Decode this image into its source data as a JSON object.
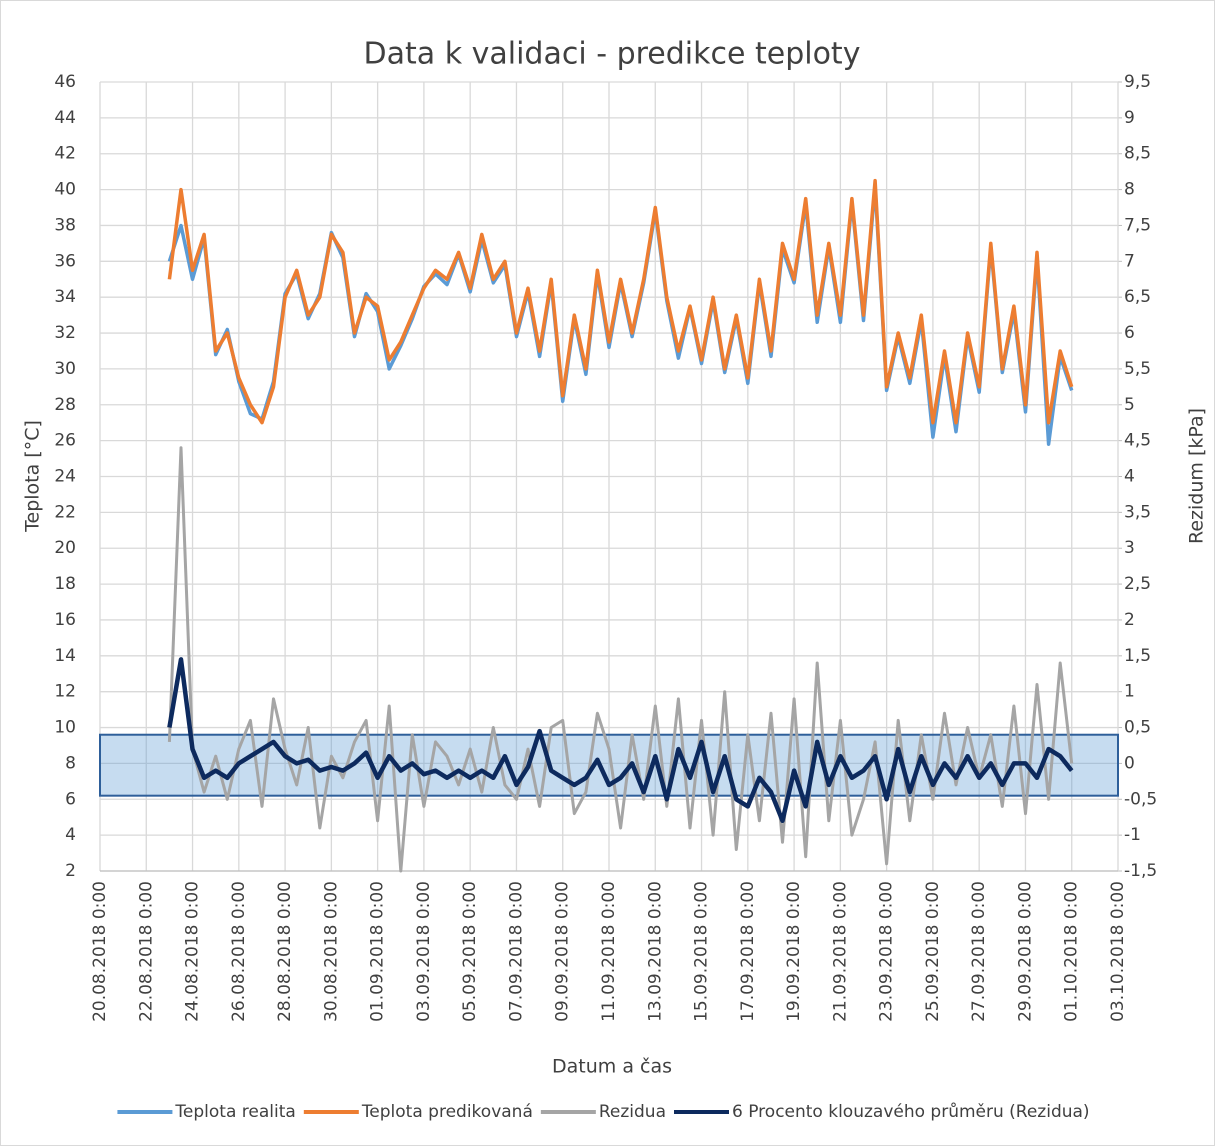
{
  "chart_data": {
    "type": "line",
    "title": "Data k validaci - predikce teploty",
    "x_label": "Datum a čas",
    "y_label": "Teplota [°C]",
    "y2_label": "Rezidum [kPa]",
    "grid": true,
    "legend": "bottom",
    "xlim": [
      "2018-08-20T00:00",
      "2018-10-03T00:00"
    ],
    "xticks": [
      {
        "value": "2018-08-20T00:00",
        "label": "20.08.2018 0:00"
      },
      {
        "value": "2018-08-22T00:00",
        "label": "22.08.2018 0:00"
      },
      {
        "value": "2018-08-24T00:00",
        "label": "24.08.2018 0:00"
      },
      {
        "value": "2018-08-26T00:00",
        "label": "26.08.2018 0:00"
      },
      {
        "value": "2018-08-28T00:00",
        "label": "28.08.2018 0:00"
      },
      {
        "value": "2018-08-30T00:00",
        "label": "30.08.2018 0:00"
      },
      {
        "value": "2018-09-01T00:00",
        "label": "01.09.2018 0:00"
      },
      {
        "value": "2018-09-03T00:00",
        "label": "03.09.2018 0:00"
      },
      {
        "value": "2018-09-05T00:00",
        "label": "05.09.2018 0:00"
      },
      {
        "value": "2018-09-07T00:00",
        "label": "07.09.2018 0:00"
      },
      {
        "value": "2018-09-09T00:00",
        "label": "09.09.2018 0:00"
      },
      {
        "value": "2018-09-11T00:00",
        "label": "11.09.2018 0:00"
      },
      {
        "value": "2018-09-13T00:00",
        "label": "13.09.2018 0:00"
      },
      {
        "value": "2018-09-15T00:00",
        "label": "15.09.2018 0:00"
      },
      {
        "value": "2018-09-17T00:00",
        "label": "17.09.2018 0:00"
      },
      {
        "value": "2018-09-19T00:00",
        "label": "19.09.2018 0:00"
      },
      {
        "value": "2018-09-21T00:00",
        "label": "21.09.2018 0:00"
      },
      {
        "value": "2018-09-23T00:00",
        "label": "23.09.2018 0:00"
      },
      {
        "value": "2018-09-25T00:00",
        "label": "25.09.2018 0:00"
      },
      {
        "value": "2018-09-27T00:00",
        "label": "27.09.2018 0:00"
      },
      {
        "value": "2018-09-29T00:00",
        "label": "29.09.2018 0:00"
      },
      {
        "value": "2018-10-01T00:00",
        "label": "01.10.2018 0:00"
      },
      {
        "value": "2018-10-03T00:00",
        "label": "03.10.2018 0:00"
      }
    ],
    "ylim": [
      2,
      46
    ],
    "yticks": [
      2,
      4,
      6,
      8,
      10,
      12,
      14,
      16,
      18,
      20,
      22,
      24,
      26,
      28,
      30,
      32,
      34,
      36,
      38,
      40,
      42,
      44,
      46
    ],
    "y2lim": [
      -1.5,
      9.5
    ],
    "y2ticks": [
      {
        "value": -1.5,
        "label": "-1,5"
      },
      -1,
      {
        "value": -0.5,
        "label": "-0,5"
      },
      0,
      {
        "value": 0.5,
        "label": "0,5"
      },
      1,
      {
        "value": 1.5,
        "label": "1,5"
      },
      2,
      {
        "value": 2.5,
        "label": "2,5"
      },
      3,
      {
        "value": 3.5,
        "label": "3,5"
      },
      4,
      {
        "value": 4.5,
        "label": "4,5"
      },
      5,
      {
        "value": 5.5,
        "label": "5,5"
      },
      6,
      {
        "value": 6.5,
        "label": "6,5"
      },
      7,
      {
        "value": 7.5,
        "label": "7,5"
      },
      8,
      {
        "value": 8.5,
        "label": "8,5"
      },
      9,
      {
        "value": 9.5,
        "label": "9,5"
      }
    ],
    "highlight_y2": [
      -0.45,
      0.4
    ],
    "highlight_color": "#5b9bd5",
    "x": [
      "2018-08-23T00:00",
      "2018-08-23T12:00",
      "2018-08-24T00:00",
      "2018-08-24T12:00",
      "2018-08-25T00:00",
      "2018-08-25T12:00",
      "2018-08-26T00:00",
      "2018-08-26T12:00",
      "2018-08-27T00:00",
      "2018-08-27T12:00",
      "2018-08-28T00:00",
      "2018-08-28T12:00",
      "2018-08-29T00:00",
      "2018-08-29T12:00",
      "2018-08-30T00:00",
      "2018-08-30T12:00",
      "2018-08-31T00:00",
      "2018-08-31T12:00",
      "2018-09-01T00:00",
      "2018-09-01T12:00",
      "2018-09-02T00:00",
      "2018-09-02T12:00",
      "2018-09-03T00:00",
      "2018-09-03T12:00",
      "2018-09-04T00:00",
      "2018-09-04T12:00",
      "2018-09-05T00:00",
      "2018-09-05T12:00",
      "2018-09-06T00:00",
      "2018-09-06T12:00",
      "2018-09-07T00:00",
      "2018-09-07T12:00",
      "2018-09-08T00:00",
      "2018-09-08T12:00",
      "2018-09-09T00:00",
      "2018-09-09T12:00",
      "2018-09-10T00:00",
      "2018-09-10T12:00",
      "2018-09-11T00:00",
      "2018-09-11T12:00",
      "2018-09-12T00:00",
      "2018-09-12T12:00",
      "2018-09-13T00:00",
      "2018-09-13T12:00",
      "2018-09-14T00:00",
      "2018-09-14T12:00",
      "2018-09-15T00:00",
      "2018-09-15T12:00",
      "2018-09-16T00:00",
      "2018-09-16T12:00",
      "2018-09-17T00:00",
      "2018-09-17T12:00",
      "2018-09-18T00:00",
      "2018-09-18T12:00",
      "2018-09-19T00:00",
      "2018-09-19T12:00",
      "2018-09-20T00:00",
      "2018-09-20T12:00",
      "2018-09-21T00:00",
      "2018-09-21T12:00",
      "2018-09-22T00:00",
      "2018-09-22T12:00",
      "2018-09-23T00:00",
      "2018-09-23T12:00",
      "2018-09-24T00:00",
      "2018-09-24T12:00",
      "2018-09-25T00:00",
      "2018-09-25T12:00",
      "2018-09-26T00:00",
      "2018-09-26T12:00",
      "2018-09-27T00:00",
      "2018-09-27T12:00",
      "2018-09-28T00:00",
      "2018-09-28T12:00",
      "2018-09-29T00:00",
      "2018-09-29T12:00",
      "2018-09-30T00:00",
      "2018-09-30T12:00",
      "2018-10-01T00:00"
    ],
    "series": [
      {
        "name": "Teplota realita",
        "color": "#5b9bd5",
        "width": 3.5,
        "values": [
          36,
          38,
          35,
          37.3,
          30.8,
          32.2,
          29.3,
          27.5,
          27.2,
          29.3,
          34.2,
          35.3,
          32.8,
          34.2,
          37.6,
          36.2,
          31.8,
          34.2,
          33.2,
          30,
          31.3,
          32.8,
          34.6,
          35.3,
          34.7,
          36.4,
          34.3,
          37.2,
          34.8,
          35.8,
          31.8,
          34.3,
          30.7,
          34.8,
          28.2,
          32.8,
          29.7,
          35.3,
          31.2,
          34.8,
          31.8,
          34.8,
          38.8,
          33.8,
          30.6,
          33.4,
          30.3,
          33.8,
          29.8,
          32.8,
          29.2,
          34.8,
          30.7,
          36.7,
          34.8,
          39.2,
          32.6,
          36.8,
          32.6,
          39.3,
          32.7,
          40.2,
          28.8,
          31.8,
          29.2,
          32.7,
          26.2,
          30.7,
          26.5,
          31.8,
          28.7,
          36.8,
          29.8,
          33.2,
          27.6,
          36.2,
          25.8,
          30.7,
          28.8
        ]
      },
      {
        "name": "Teplota predikovaná",
        "color": "#ed7d31",
        "width": 3.5,
        "values": [
          35,
          40,
          35.5,
          37.5,
          31,
          32,
          29.5,
          28,
          27,
          29,
          34,
          35.5,
          33,
          34,
          37.5,
          36.5,
          32,
          34,
          33.5,
          30.5,
          31.5,
          33,
          34.5,
          35.5,
          35,
          36.5,
          34.5,
          37.5,
          35,
          36,
          32,
          34.5,
          31,
          35,
          28.5,
          33,
          30,
          35.5,
          31.5,
          35,
          32,
          35,
          39,
          34,
          31,
          33.5,
          30.5,
          34,
          30,
          33,
          29.5,
          35,
          31,
          37,
          35,
          39.5,
          33,
          37,
          33,
          39.5,
          33,
          40.5,
          29,
          32,
          29.5,
          33,
          27,
          31,
          27,
          32,
          29,
          37,
          30,
          33.5,
          28,
          36.5,
          27,
          31,
          29
        ]
      },
      {
        "name": "Rezidua",
        "color": "#a5a5a5",
        "width": 3,
        "axis": "y2",
        "values": [
          0.3,
          4.4,
          0.2,
          -0.4,
          0.1,
          -0.5,
          0.2,
          0.6,
          -0.6,
          0.9,
          0.2,
          -0.3,
          0.5,
          -0.9,
          0.1,
          -0.2,
          0.3,
          0.6,
          -0.8,
          0.8,
          -1.5,
          0.4,
          -0.6,
          0.3,
          0.1,
          -0.3,
          0.2,
          -0.4,
          0.5,
          -0.3,
          -0.5,
          0.2,
          -0.6,
          0.5,
          0.6,
          -0.7,
          -0.4,
          0.7,
          0.2,
          -0.9,
          0.4,
          -0.5,
          0.8,
          -0.6,
          0.9,
          -0.9,
          0.6,
          -1.0,
          1.0,
          -1.2,
          0.4,
          -0.8,
          0.7,
          -1.1,
          0.9,
          -1.3,
          1.4,
          -0.8,
          0.6,
          -1.0,
          -0.5,
          0.3,
          -1.4,
          0.6,
          -0.8,
          0.4,
          -0.5,
          0.7,
          -0.3,
          0.5,
          -0.2,
          0.4,
          -0.6,
          0.8,
          -0.7,
          1.1,
          -0.5,
          1.4,
          0.0
        ]
      },
      {
        "name": "6 Procento klouzavého průměru (Rezidua)",
        "color": "#0d2a5e",
        "width": 4.5,
        "axis": "y2",
        "values": [
          0.5,
          1.45,
          0.2,
          -0.2,
          -0.1,
          -0.2,
          0,
          0.1,
          0.2,
          0.3,
          0.1,
          0,
          0.05,
          -0.1,
          -0.05,
          -0.1,
          0,
          0.15,
          -0.2,
          0.1,
          -0.1,
          0,
          -0.15,
          -0.1,
          -0.2,
          -0.1,
          -0.2,
          -0.1,
          -0.2,
          0.1,
          -0.3,
          -0.05,
          0.45,
          -0.1,
          -0.2,
          -0.3,
          -0.2,
          0.05,
          -0.3,
          -0.2,
          0,
          -0.4,
          0.1,
          -0.5,
          0.2,
          -0.2,
          0.3,
          -0.4,
          0.1,
          -0.5,
          -0.6,
          -0.2,
          -0.4,
          -0.8,
          -0.1,
          -0.6,
          0.3,
          -0.3,
          0.1,
          -0.2,
          -0.1,
          0.1,
          -0.5,
          0.2,
          -0.4,
          0.1,
          -0.3,
          0,
          -0.2,
          0.1,
          -0.2,
          0,
          -0.3,
          0,
          0,
          -0.2,
          0.2,
          0.1,
          -0.1
        ]
      }
    ]
  }
}
